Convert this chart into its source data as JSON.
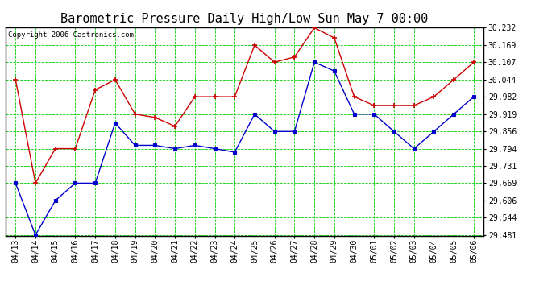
{
  "title": "Barometric Pressure Daily High/Low Sun May 7 00:00",
  "copyright": "Copyright 2006 Castronics.com",
  "xlabels": [
    "04/13",
    "04/14",
    "04/15",
    "04/16",
    "04/17",
    "04/18",
    "04/19",
    "04/20",
    "04/21",
    "04/22",
    "04/23",
    "04/24",
    "04/25",
    "04/26",
    "04/27",
    "04/28",
    "04/29",
    "04/30",
    "05/01",
    "05/02",
    "05/03",
    "05/04",
    "05/05",
    "05/06"
  ],
  "high_values": [
    30.044,
    29.669,
    29.794,
    29.794,
    30.007,
    30.044,
    29.919,
    29.907,
    29.875,
    29.982,
    29.982,
    29.982,
    30.169,
    30.107,
    30.126,
    30.232,
    30.195,
    29.982,
    29.95,
    29.95,
    29.95,
    29.982,
    30.044,
    30.107
  ],
  "low_values": [
    29.669,
    29.481,
    29.606,
    29.669,
    29.669,
    29.887,
    29.806,
    29.806,
    29.794,
    29.806,
    29.794,
    29.781,
    29.919,
    29.856,
    29.856,
    30.107,
    30.075,
    29.919,
    29.919,
    29.856,
    29.794,
    29.856,
    29.919,
    29.982
  ],
  "high_color": "#cc0000",
  "low_color": "#0000cc",
  "bg_color": "#ffffff",
  "plot_bg_color": "#ffffff",
  "grid_color": "#00cc00",
  "ylim_min": 29.481,
  "ylim_max": 30.232,
  "yticks": [
    29.481,
    29.544,
    29.606,
    29.669,
    29.731,
    29.794,
    29.856,
    29.919,
    29.982,
    30.044,
    30.107,
    30.169,
    30.232
  ],
  "title_fontsize": 11,
  "tick_fontsize": 7,
  "copyright_fontsize": 6.5
}
